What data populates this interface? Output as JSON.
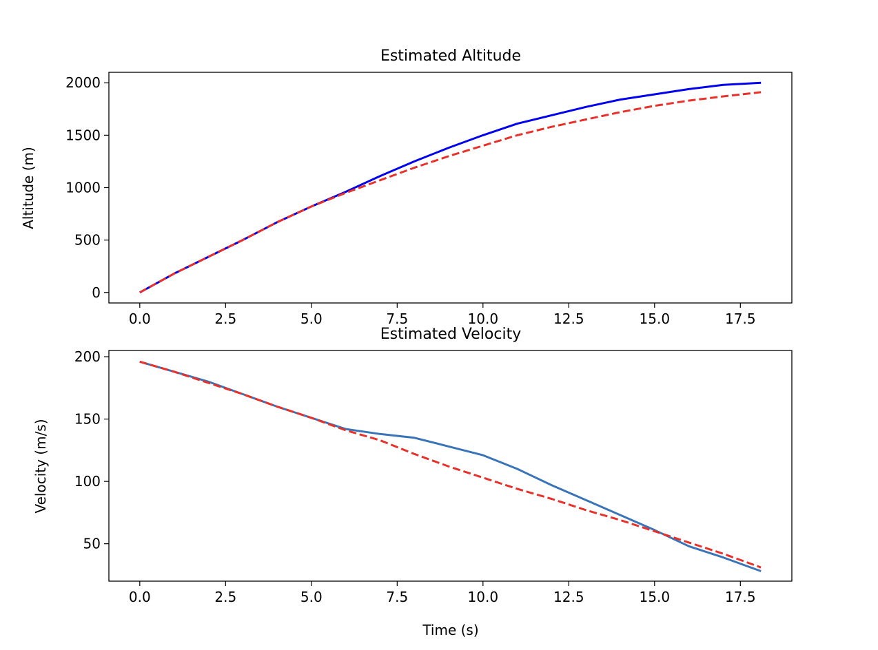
{
  "chart_data": [
    {
      "type": "line",
      "title": "Estimated Altitude",
      "xlabel": "",
      "ylabel": "Altitude (m)",
      "xlim": [
        -0.9,
        19.0
      ],
      "ylim": [
        -100,
        2100
      ],
      "xticks": [
        0.0,
        2.5,
        5.0,
        7.5,
        10.0,
        12.5,
        15.0,
        17.5
      ],
      "xtick_labels": [
        "0.0",
        "2.5",
        "5.0",
        "7.5",
        "10.0",
        "12.5",
        "15.0",
        "17.5"
      ],
      "yticks": [
        0,
        500,
        1000,
        1500,
        2000
      ],
      "ytick_labels": [
        "0",
        "500",
        "1000",
        "1500",
        "2000"
      ],
      "grid": false,
      "series": [
        {
          "color": "#0000ee",
          "style": "solid",
          "x": [
            0,
            1,
            2,
            3,
            4,
            5,
            6,
            7,
            8,
            9,
            10,
            11,
            12,
            13,
            14,
            15,
            16,
            17,
            18.1
          ],
          "y": [
            0,
            180,
            340,
            500,
            670,
            820,
            960,
            1110,
            1250,
            1380,
            1500,
            1610,
            1690,
            1770,
            1840,
            1890,
            1940,
            1980,
            2000
          ]
        },
        {
          "color": "#e8312a",
          "style": "dashed",
          "x": [
            0,
            1,
            2,
            3,
            4,
            5,
            6,
            7,
            8,
            9,
            10,
            11,
            12,
            13,
            14,
            15,
            16,
            17,
            18.1
          ],
          "y": [
            0,
            180,
            340,
            500,
            670,
            820,
            950,
            1070,
            1190,
            1300,
            1400,
            1500,
            1580,
            1650,
            1720,
            1780,
            1830,
            1870,
            1910
          ]
        }
      ]
    },
    {
      "type": "line",
      "title": "Estimated Velocity",
      "xlabel": "Time (s)",
      "ylabel": "Velocity (m/s)",
      "xlim": [
        -0.9,
        19.0
      ],
      "ylim": [
        20,
        205
      ],
      "xticks": [
        0.0,
        2.5,
        5.0,
        7.5,
        10.0,
        12.5,
        15.0,
        17.5
      ],
      "xtick_labels": [
        "0.0",
        "2.5",
        "5.0",
        "7.5",
        "10.0",
        "12.5",
        "15.0",
        "17.5"
      ],
      "yticks": [
        50,
        100,
        150,
        200
      ],
      "ytick_labels": [
        "50",
        "100",
        "150",
        "200"
      ],
      "grid": false,
      "series": [
        {
          "color": "#3a74b8",
          "style": "solid",
          "x": [
            0,
            1,
            2,
            3,
            4,
            5,
            6,
            7,
            8,
            9,
            10,
            11,
            12,
            13,
            14,
            15,
            16,
            17,
            18.1
          ],
          "y": [
            196,
            188,
            180,
            170,
            160,
            151,
            142,
            138,
            135,
            128,
            121,
            110,
            97,
            85,
            73,
            61,
            48,
            39,
            28
          ]
        },
        {
          "color": "#e8312a",
          "style": "dashed",
          "x": [
            0,
            1,
            2,
            3,
            4,
            5,
            6,
            7,
            8,
            9,
            10,
            11,
            12,
            13,
            14,
            15,
            16,
            17,
            18.1
          ],
          "y": [
            196,
            188,
            179,
            170,
            160,
            151,
            141,
            133,
            122,
            112,
            103,
            94,
            86,
            77,
            69,
            60,
            51,
            42,
            31
          ]
        }
      ]
    }
  ]
}
